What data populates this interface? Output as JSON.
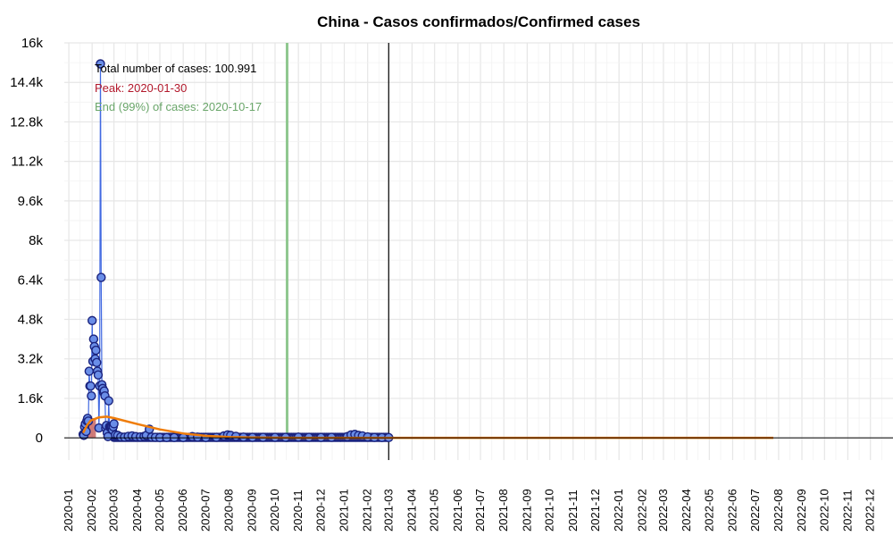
{
  "chart_data": {
    "type": "scatter",
    "title": "China - Casos confirmados/Confirmed cases",
    "xlabel": "",
    "ylabel": "",
    "x_axis_type": "date",
    "xlim": [
      "2019-12-26",
      "2022-12-31"
    ],
    "ylim": [
      -900,
      16000
    ],
    "y_ticks": [
      0,
      1600,
      3200,
      4800,
      6400,
      8000,
      9600,
      11200,
      12800,
      14400,
      16000
    ],
    "y_tick_labels": [
      "0",
      "1.6k",
      "3.2k",
      "4.8k",
      "6.4k",
      "8k",
      "9.6k",
      "11.2k",
      "12.8k",
      "14.4k",
      "16k"
    ],
    "x_tick_labels": [
      "2020-01",
      "2020-02",
      "2020-03",
      "2020-04",
      "2020-05",
      "2020-06",
      "2020-07",
      "2020-08",
      "2020-09",
      "2020-10",
      "2020-11",
      "2020-12",
      "2021-01",
      "2021-02",
      "2021-03",
      "2021-04",
      "2021-05",
      "2021-06",
      "2021-07",
      "2021-08",
      "2021-09",
      "2021-10",
      "2021-11",
      "2021-12",
      "2022-01",
      "2022-02",
      "2022-03",
      "2022-04",
      "2022-05",
      "2022-06",
      "2022-07",
      "2022-08",
      "2022-09",
      "2022-10",
      "2022-11",
      "2022-12"
    ],
    "grid": true,
    "annotations": {
      "total": "Total number of cases: 100.991",
      "peak": "Peak: 2020-01-30",
      "end": "End (99%) of cases: 2020-10-17"
    },
    "peak_date": "2020-01-30",
    "end_date": "2020-10-17",
    "today_date": "2021-03-01",
    "colors": {
      "points_fill": "#6a8ee8",
      "points_stroke": "#1a237e",
      "line": "#4169e1",
      "fit": "#ef7d0a",
      "peak_band": "#c0504d",
      "peak_text": "#b2182b",
      "end_line": "#90c890",
      "end_text": "#6aa66a"
    },
    "series": [
      {
        "kind": "daily_cases",
        "points": [
          [
            "2020-01-20",
            140
          ],
          [
            "2020-01-21",
            100
          ],
          [
            "2020-01-22",
            440
          ],
          [
            "2020-01-23",
            570
          ],
          [
            "2020-01-24",
            260
          ],
          [
            "2020-01-25",
            690
          ],
          [
            "2020-01-26",
            790
          ],
          [
            "2020-01-27",
            680
          ],
          [
            "2020-01-28",
            2700
          ],
          [
            "2020-01-29",
            2100
          ],
          [
            "2020-01-30",
            2100
          ],
          [
            "2020-01-31",
            1700
          ],
          [
            "2020-02-01",
            4750
          ],
          [
            "2020-02-02",
            3100
          ],
          [
            "2020-02-03",
            4000
          ],
          [
            "2020-02-04",
            3700
          ],
          [
            "2020-02-05",
            3200
          ],
          [
            "2020-02-06",
            3550
          ],
          [
            "2020-02-07",
            3050
          ],
          [
            "2020-02-08",
            2700
          ],
          [
            "2020-02-09",
            2550
          ],
          [
            "2020-02-10",
            400
          ],
          [
            "2020-02-11",
            2100
          ],
          [
            "2020-02-12",
            15150
          ],
          [
            "2020-02-13",
            6500
          ],
          [
            "2020-02-14",
            2150
          ],
          [
            "2020-02-15",
            2000
          ],
          [
            "2020-02-16",
            1850
          ],
          [
            "2020-02-17",
            1900
          ],
          [
            "2020-02-18",
            1700
          ],
          [
            "2020-02-19",
            400
          ],
          [
            "2020-02-20",
            500
          ],
          [
            "2020-02-21",
            200
          ],
          [
            "2020-02-22",
            50
          ],
          [
            "2020-02-23",
            1500
          ],
          [
            "2020-02-24",
            450
          ],
          [
            "2020-02-25",
            420
          ],
          [
            "2020-02-26",
            400
          ],
          [
            "2020-02-27",
            430
          ],
          [
            "2020-02-28",
            330
          ],
          [
            "2020-02-29",
            450
          ],
          [
            "2020-03-01",
            570
          ],
          [
            "2020-03-03",
            120
          ],
          [
            "2020-03-06",
            100
          ],
          [
            "2020-03-10",
            40
          ],
          [
            "2020-03-15",
            30
          ],
          [
            "2020-03-20",
            60
          ],
          [
            "2020-03-25",
            80
          ],
          [
            "2020-03-30",
            50
          ],
          [
            "2020-04-05",
            40
          ],
          [
            "2020-04-10",
            60
          ],
          [
            "2020-04-13",
            100
          ],
          [
            "2020-04-17",
            350
          ],
          [
            "2020-04-20",
            30
          ],
          [
            "2020-04-25",
            20
          ],
          [
            "2020-05-01",
            10
          ],
          [
            "2020-05-10",
            10
          ],
          [
            "2020-05-20",
            10
          ],
          [
            "2020-06-01",
            10
          ],
          [
            "2020-06-13",
            50
          ],
          [
            "2020-06-20",
            30
          ],
          [
            "2020-07-01",
            10
          ],
          [
            "2020-07-15",
            20
          ],
          [
            "2020-07-25",
            80
          ],
          [
            "2020-07-30",
            120
          ],
          [
            "2020-08-03",
            100
          ],
          [
            "2020-08-10",
            60
          ],
          [
            "2020-08-20",
            30
          ],
          [
            "2020-09-01",
            20
          ],
          [
            "2020-09-15",
            20
          ],
          [
            "2020-10-01",
            20
          ],
          [
            "2020-10-15",
            20
          ],
          [
            "2020-11-01",
            30
          ],
          [
            "2020-11-15",
            20
          ],
          [
            "2020-12-01",
            15
          ],
          [
            "2020-12-15",
            20
          ],
          [
            "2021-01-05",
            50
          ],
          [
            "2021-01-10",
            120
          ],
          [
            "2021-01-15",
            140
          ],
          [
            "2021-01-20",
            100
          ],
          [
            "2021-01-25",
            80
          ],
          [
            "2021-02-01",
            40
          ],
          [
            "2021-02-10",
            15
          ],
          [
            "2021-02-20",
            10
          ],
          [
            "2021-03-01",
            10
          ]
        ]
      },
      {
        "kind": "fitted_curve",
        "points": [
          [
            "2020-01-20",
            200
          ],
          [
            "2020-01-25",
            500
          ],
          [
            "2020-01-30",
            700
          ],
          [
            "2020-02-10",
            830
          ],
          [
            "2020-02-20",
            860
          ],
          [
            "2020-03-01",
            800
          ],
          [
            "2020-04-01",
            560
          ],
          [
            "2020-05-01",
            340
          ],
          [
            "2020-06-01",
            180
          ],
          [
            "2020-07-01",
            80
          ],
          [
            "2020-08-01",
            35
          ],
          [
            "2020-09-01",
            15
          ],
          [
            "2020-10-01",
            5
          ],
          [
            "2020-11-01",
            0
          ],
          [
            "2022-07-25",
            0
          ]
        ]
      }
    ]
  }
}
